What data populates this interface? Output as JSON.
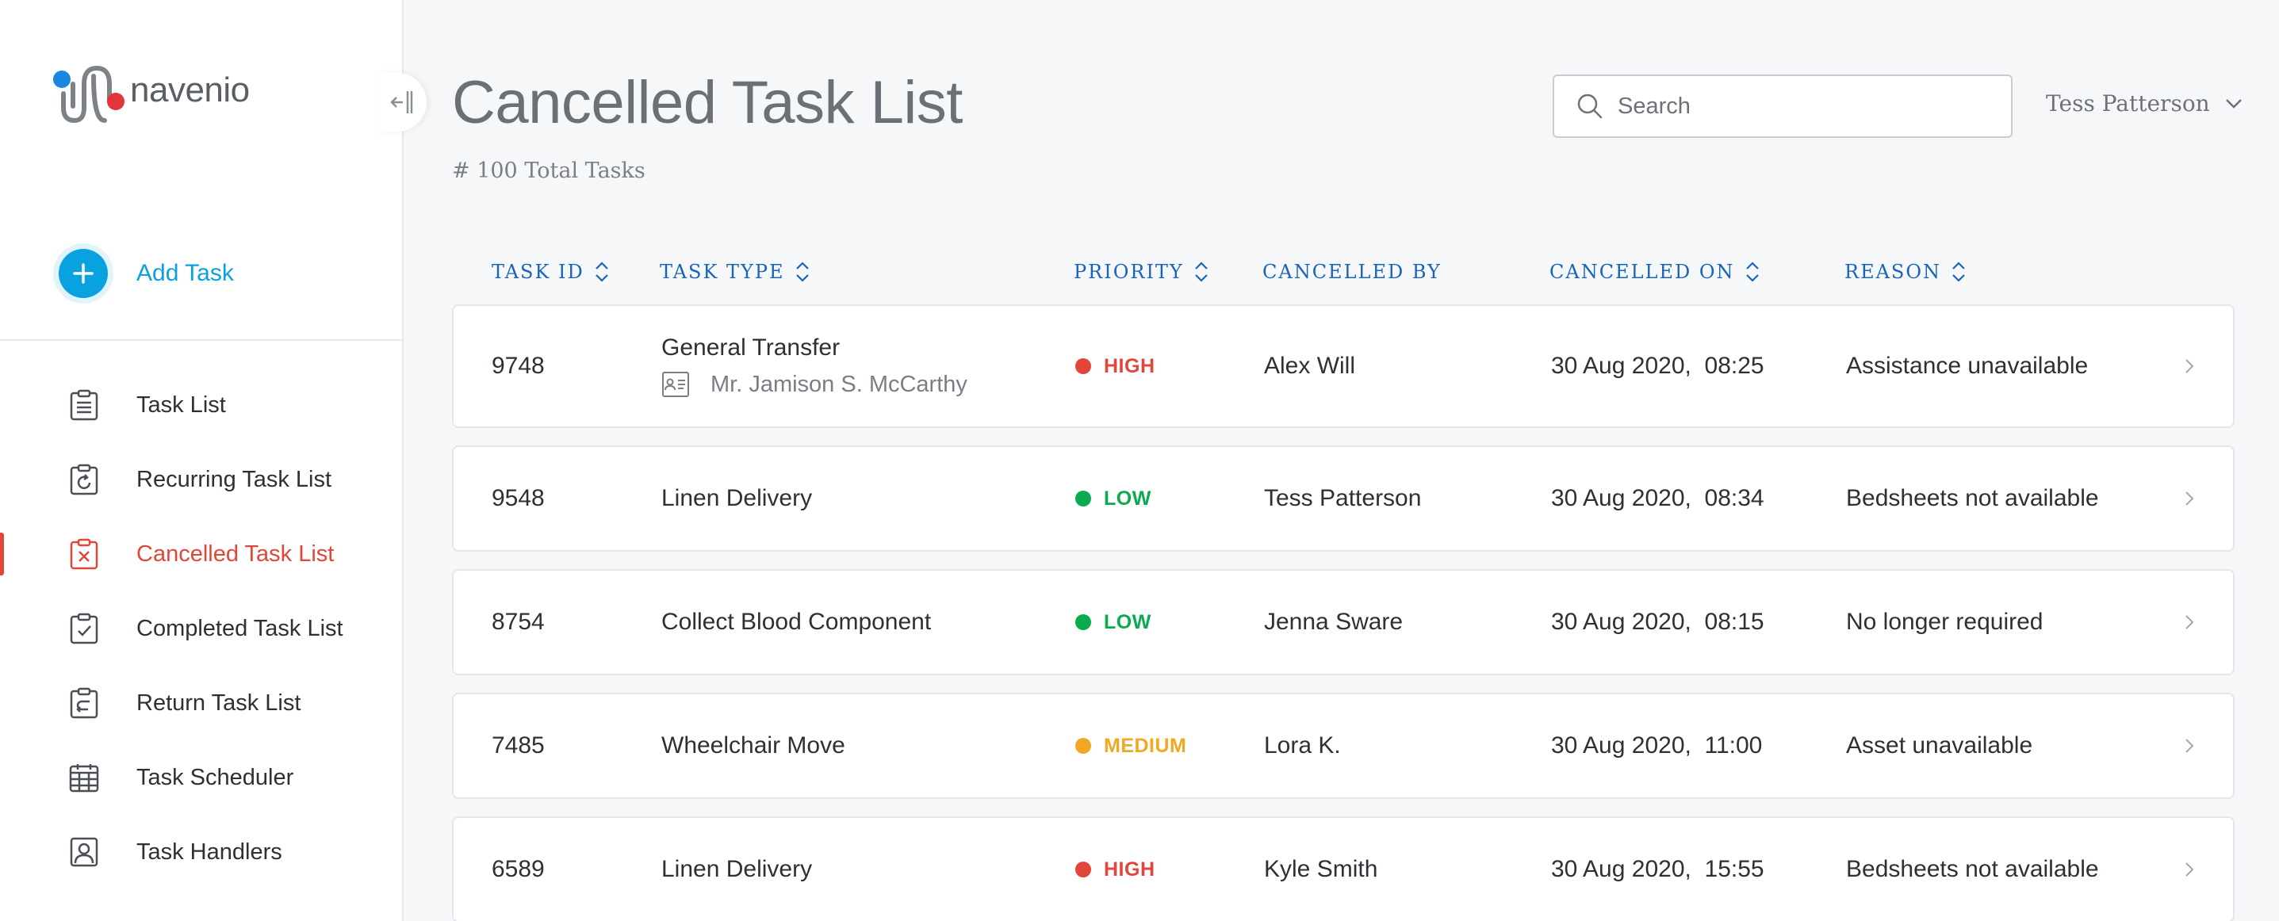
{
  "brand": {
    "name": "navenio",
    "colors": {
      "logo_blue": "#1a86e0",
      "logo_red": "#e2343a",
      "logo_gray": "#7d8288"
    }
  },
  "sidebar": {
    "collapse_icon": "collapse-left-icon",
    "add_task": {
      "label": "Add Task",
      "icon": "plus-icon",
      "color": "#0aa1e0"
    },
    "items": [
      {
        "label": "Task List",
        "icon": "clipboard-list-icon",
        "active": false
      },
      {
        "label": "Recurring Task List",
        "icon": "clipboard-recurring-icon",
        "active": false
      },
      {
        "label": "Cancelled Task List",
        "icon": "clipboard-cancel-icon",
        "active": true
      },
      {
        "label": "Completed Task List",
        "icon": "clipboard-check-icon",
        "active": false
      },
      {
        "label": "Return Task List",
        "icon": "clipboard-return-icon",
        "active": false
      },
      {
        "label": "Task Scheduler",
        "icon": "calendar-icon",
        "active": false
      },
      {
        "label": "Task Handlers",
        "icon": "user-badge-icon",
        "active": false
      }
    ],
    "active_color": "#e2463a"
  },
  "header": {
    "title": "Cancelled Task List",
    "subtitle": "# 100 Total Tasks",
    "search": {
      "placeholder": "Search",
      "value": ""
    },
    "user": {
      "name": "Tess Patterson"
    }
  },
  "table": {
    "columns": {
      "task_id": "TASK ID",
      "task_type": "TASK TYPE",
      "priority": "PRIORITY",
      "cancelled_by": "CANCELLED BY",
      "cancelled_on": "CANCELLED ON",
      "reason": "REASON"
    },
    "header_color": "#1865b8",
    "priority_colors": {
      "HIGH": "#e2463a",
      "LOW": "#0aaa4f",
      "MEDIUM": "#f2a823"
    },
    "rows": [
      {
        "task_id": "9748",
        "task_type": "General Transfer",
        "patient": "Mr. Jamison S. McCarthy",
        "priority": "HIGH",
        "cancelled_by": "Alex Will",
        "cancelled_on": "30 Aug 2020,  08:25",
        "reason": "Assistance unavailable"
      },
      {
        "task_id": "9548",
        "task_type": "Linen Delivery",
        "patient": "",
        "priority": "LOW",
        "cancelled_by": "Tess Patterson",
        "cancelled_on": "30 Aug 2020,  08:34",
        "reason": "Bedsheets not available"
      },
      {
        "task_id": "8754",
        "task_type": "Collect Blood Component",
        "patient": "",
        "priority": "LOW",
        "cancelled_by": "Jenna Sware",
        "cancelled_on": "30 Aug 2020,  08:15",
        "reason": "No longer required"
      },
      {
        "task_id": "7485",
        "task_type": "Wheelchair Move",
        "patient": "",
        "priority": "MEDIUM",
        "cancelled_by": "Lora K.",
        "cancelled_on": "30 Aug 2020,  11:00",
        "reason": "Asset unavailable"
      },
      {
        "task_id": "6589",
        "task_type": "Linen Delivery",
        "patient": "",
        "priority": "HIGH",
        "cancelled_by": "Kyle Smith",
        "cancelled_on": "30 Aug 2020,  15:55",
        "reason": "Bedsheets not available"
      }
    ]
  }
}
